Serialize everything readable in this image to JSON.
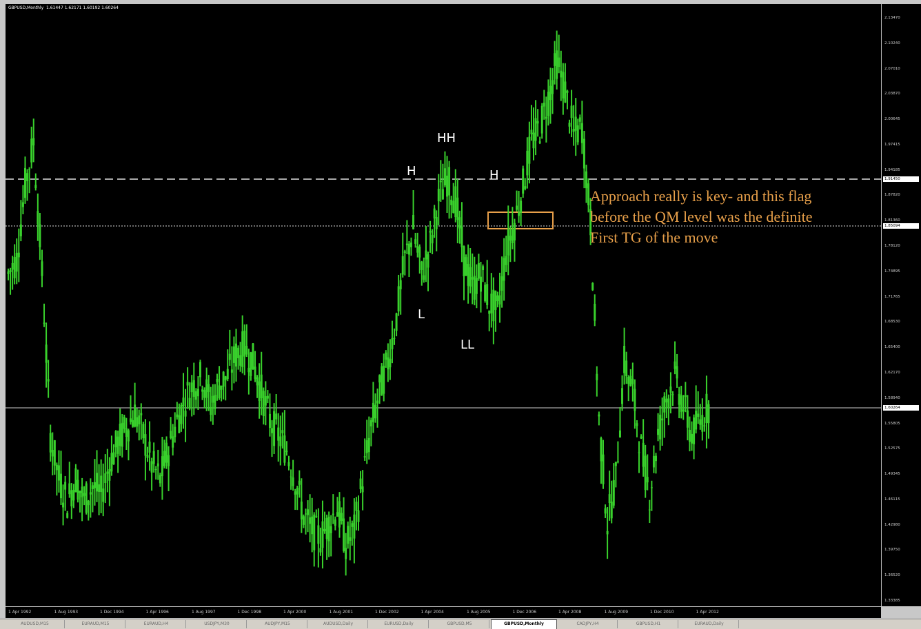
{
  "header": {
    "symbol": "GBPUSD,Monthly",
    "ohlc": "1.61447 1.62171 1.60192 1.60264"
  },
  "price_ticks": [
    "2.13470",
    "2.10240",
    "2.07010",
    "2.03870",
    "2.00645",
    "1.97415",
    "1.94185",
    "1.87820",
    "1.81360",
    "1.78120",
    "1.74895",
    "1.71765",
    "1.68530",
    "1.65400",
    "1.62170",
    "1.58940",
    "1.55805",
    "1.52575",
    "1.49345",
    "1.46115",
    "1.42980",
    "1.39750",
    "1.36520",
    "1.33385"
  ],
  "price_tags": {
    "dashed": "1.91450",
    "dotted": "1.85094",
    "current": "1.60264"
  },
  "time_ticks": [
    "1 Apr 1992",
    "1 Aug 1993",
    "1 Dec 1994",
    "1 Apr 1996",
    "1 Aug 1997",
    "1 Dec 1998",
    "1 Apr 2000",
    "1 Aug 2001",
    "1 Dec 2002",
    "1 Apr 2004",
    "1 Aug 2005",
    "1 Dec 2006",
    "1 Apr 2008",
    "1 Aug 2009",
    "1 Dec 2010",
    "1 Apr 2012"
  ],
  "labels": {
    "h1": "H",
    "hh": "HH",
    "h2": "H",
    "l": "L",
    "ll": "LL"
  },
  "annotation": {
    "line1": "Approach really is key- and this flag",
    "line2": "before the QM level was the definite",
    "line3": "First TG of the move"
  },
  "tabs": [
    "AUDUSD,M15",
    "EURAUD,M15",
    "EURAUD,H4",
    "USDJPY,M30",
    "AUDJPY,M15",
    "AUDUSD,Daily",
    "EURUSD,Daily",
    "GBPUSD,M5",
    "GBPUSD,Monthly",
    "CADJPY,H4",
    "GBPUSD,H1",
    "EURAUD,Daily"
  ],
  "active_tab": "GBPUSD,Monthly",
  "colors": {
    "candle": "#39d12c",
    "annotation": "#e8a04a",
    "background": "#000000"
  },
  "chart_data": {
    "type": "line",
    "ylim": [
      1.33385,
      2.1347
    ],
    "series": [
      {
        "values": [
          1.78,
          1.8,
          1.9,
          1.96,
          1.78,
          1.56,
          1.5,
          1.47,
          1.5,
          1.47,
          1.49,
          1.48,
          1.52,
          1.55,
          1.57,
          1.59,
          1.56,
          1.52,
          1.5,
          1.54,
          1.58,
          1.61,
          1.63,
          1.64,
          1.6,
          1.63,
          1.64,
          1.67,
          1.68,
          1.66,
          1.62,
          1.58,
          1.56,
          1.54,
          1.5,
          1.45,
          1.43,
          1.42,
          1.44,
          1.46,
          1.41,
          1.43,
          1.5,
          1.57,
          1.62,
          1.66,
          1.72,
          1.8,
          1.84,
          1.78,
          1.82,
          1.88,
          1.91,
          1.88,
          1.8,
          1.76,
          1.78,
          1.74,
          1.73,
          1.81,
          1.85,
          1.9,
          1.96,
          1.98,
          2.02,
          2.07,
          2.03,
          1.97,
          1.98,
          1.85,
          1.58,
          1.44,
          1.5,
          1.66,
          1.62,
          1.54,
          1.48,
          1.56,
          1.61,
          1.64,
          1.6,
          1.56,
          1.58,
          1.6
        ]
      }
    ]
  }
}
